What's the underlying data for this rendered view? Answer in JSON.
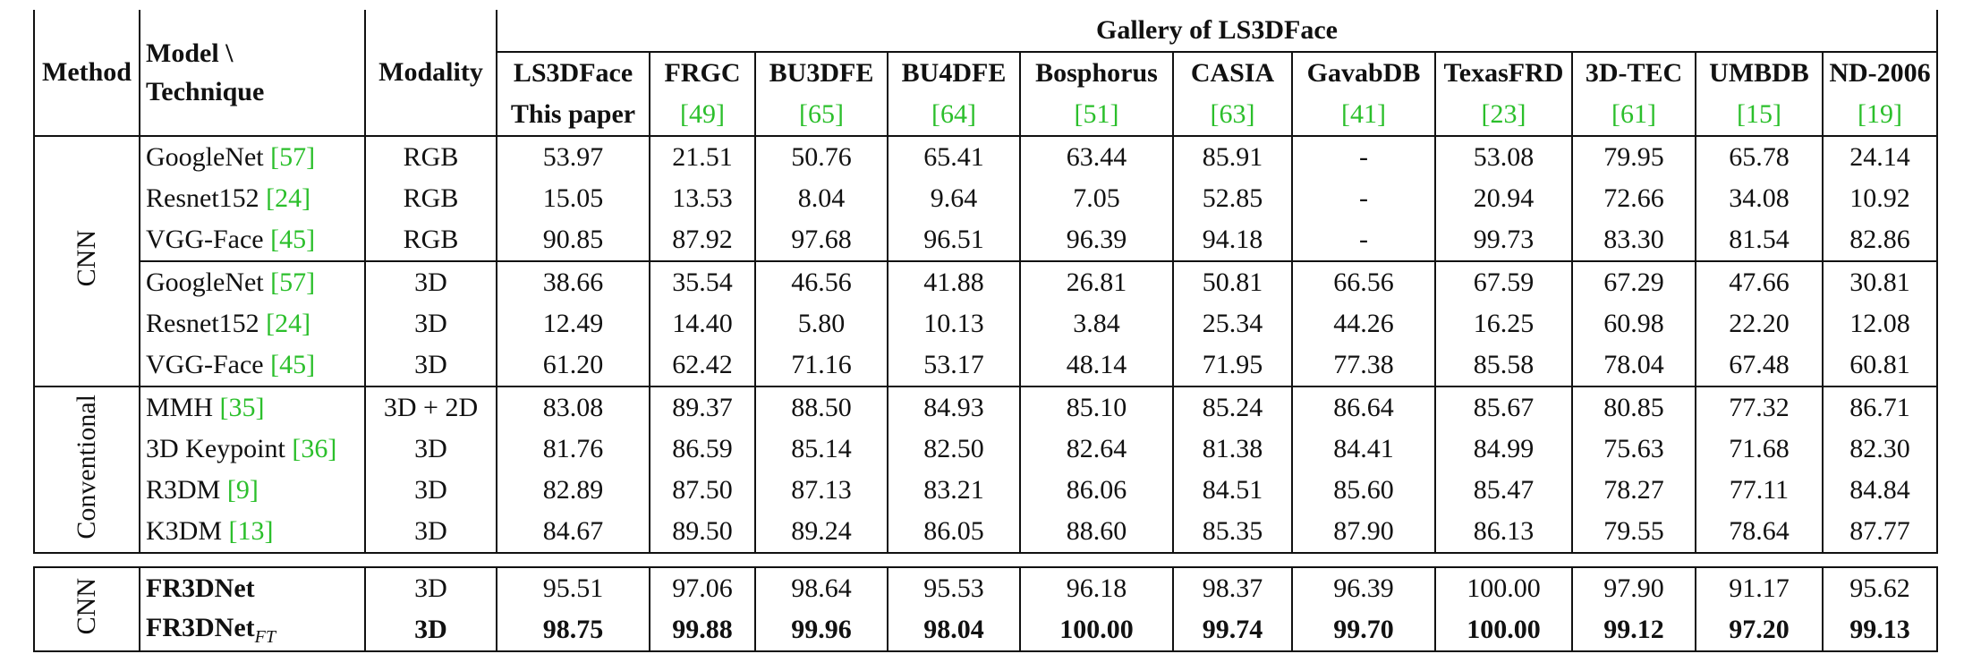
{
  "table": {
    "header": {
      "method": "Method",
      "model_line1": "Model \\",
      "model_line2": "Technique",
      "modality": "Modality",
      "gallery": "Gallery of LS3DFace",
      "datasets": [
        {
          "name": "LS3DFace",
          "ref": "This paper",
          "ref_is_cite": false
        },
        {
          "name": "FRGC",
          "ref": "[49]",
          "ref_is_cite": true
        },
        {
          "name": "BU3DFE",
          "ref": "[65]",
          "ref_is_cite": true
        },
        {
          "name": "BU4DFE",
          "ref": "[64]",
          "ref_is_cite": true
        },
        {
          "name": "Bosphorus",
          "ref": "[51]",
          "ref_is_cite": true
        },
        {
          "name": "CASIA",
          "ref": "[63]",
          "ref_is_cite": true
        },
        {
          "name": "GavabDB",
          "ref": "[41]",
          "ref_is_cite": true
        },
        {
          "name": "TexasFRD",
          "ref": "[23]",
          "ref_is_cite": true
        },
        {
          "name": "3D-TEC",
          "ref": "[61]",
          "ref_is_cite": true
        },
        {
          "name": "UMBDB",
          "ref": "[15]",
          "ref_is_cite": true
        },
        {
          "name": "ND-2006",
          "ref": "[19]",
          "ref_is_cite": true
        }
      ]
    },
    "groups": [
      {
        "method": "CNN",
        "subgroups": [
          {
            "rows": [
              {
                "model": "GoogleNet",
                "cite": "[57]",
                "modality": "RGB",
                "values": [
                  "53.97",
                  "21.51",
                  "50.76",
                  "65.41",
                  "63.44",
                  "85.91",
                  "-",
                  "53.08",
                  "79.95",
                  "65.78",
                  "24.14"
                ]
              },
              {
                "model": "Resnet152",
                "cite": "[24]",
                "modality": "RGB",
                "values": [
                  "15.05",
                  "13.53",
                  "8.04",
                  "9.64",
                  "7.05",
                  "52.85",
                  "-",
                  "20.94",
                  "72.66",
                  "34.08",
                  "10.92"
                ]
              },
              {
                "model": "VGG-Face",
                "cite": "[45]",
                "modality": "RGB",
                "values": [
                  "90.85",
                  "87.92",
                  "97.68",
                  "96.51",
                  "96.39",
                  "94.18",
                  "-",
                  "99.73",
                  "83.30",
                  "81.54",
                  "82.86"
                ]
              }
            ]
          },
          {
            "rows": [
              {
                "model": "GoogleNet",
                "cite": "[57]",
                "modality": "3D",
                "values": [
                  "38.66",
                  "35.54",
                  "46.56",
                  "41.88",
                  "26.81",
                  "50.81",
                  "66.56",
                  "67.59",
                  "67.29",
                  "47.66",
                  "30.81"
                ]
              },
              {
                "model": "Resnet152",
                "cite": "[24]",
                "modality": "3D",
                "values": [
                  "12.49",
                  "14.40",
                  "5.80",
                  "10.13",
                  "3.84",
                  "25.34",
                  "44.26",
                  "16.25",
                  "60.98",
                  "22.20",
                  "12.08"
                ]
              },
              {
                "model": "VGG-Face",
                "cite": "[45]",
                "modality": "3D",
                "values": [
                  "61.20",
                  "62.42",
                  "71.16",
                  "53.17",
                  "48.14",
                  "71.95",
                  "77.38",
                  "85.58",
                  "78.04",
                  "67.48",
                  "60.81"
                ]
              }
            ]
          }
        ]
      },
      {
        "method": "Conventional",
        "subgroups": [
          {
            "rows": [
              {
                "model": "MMH",
                "cite": "[35]",
                "modality": "3D + 2D",
                "values": [
                  "83.08",
                  "89.37",
                  "88.50",
                  "84.93",
                  "85.10",
                  "85.24",
                  "86.64",
                  "85.67",
                  "80.85",
                  "77.32",
                  "86.71"
                ]
              },
              {
                "model": "3D Keypoint",
                "cite": "[36]",
                "modality": "3D",
                "values": [
                  "81.76",
                  "86.59",
                  "85.14",
                  "82.50",
                  "82.64",
                  "81.38",
                  "84.41",
                  "84.99",
                  "75.63",
                  "71.68",
                  "82.30"
                ]
              },
              {
                "model": "R3DM",
                "cite": "[9]",
                "modality": "3D",
                "values": [
                  "82.89",
                  "87.50",
                  "87.13",
                  "83.21",
                  "86.06",
                  "84.51",
                  "85.60",
                  "85.47",
                  "78.27",
                  "77.11",
                  "84.84"
                ]
              },
              {
                "model": "K3DM",
                "cite": "[13]",
                "modality": "3D",
                "values": [
                  "84.67",
                  "89.50",
                  "89.24",
                  "86.05",
                  "88.60",
                  "85.35",
                  "87.90",
                  "86.13",
                  "79.55",
                  "78.64",
                  "87.77"
                ]
              }
            ]
          }
        ]
      }
    ],
    "final": {
      "method": "CNN",
      "rows": [
        {
          "model": "FR3DNet",
          "model_sub": "",
          "modality": "3D",
          "bold_values": false,
          "values": [
            "95.51",
            "97.06",
            "98.64",
            "95.53",
            "96.18",
            "98.37",
            "96.39",
            "100.00",
            "97.90",
            "91.17",
            "95.62"
          ]
        },
        {
          "model": "FR3DNet",
          "model_sub": "FT",
          "modality": "3D",
          "bold_values": true,
          "values": [
            "98.75",
            "99.88",
            "99.96",
            "98.04",
            "100.00",
            "99.74",
            "99.70",
            "100.00",
            "99.12",
            "97.20",
            "99.13"
          ]
        }
      ]
    }
  }
}
